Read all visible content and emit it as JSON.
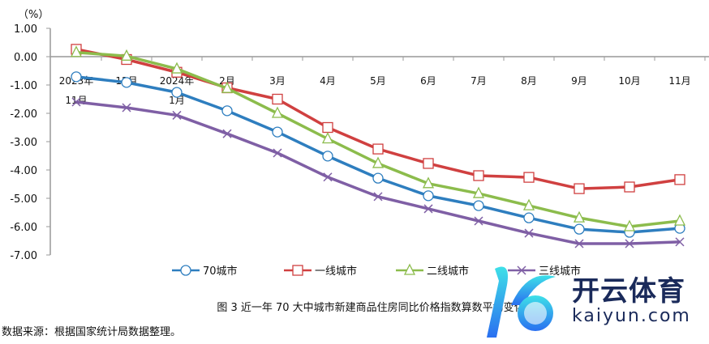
{
  "chart_data": {
    "type": "line",
    "title": "",
    "ylabel": "（%）",
    "ylim": [
      -7,
      1
    ],
    "yticks": [
      "1.00",
      "0.00",
      "-1.00",
      "-2.00",
      "-3.00",
      "-4.00",
      "-5.00",
      "-6.00",
      "-7.00"
    ],
    "categories": [
      [
        "2023年",
        "11月"
      ],
      [
        "12月"
      ],
      [
        "2024年",
        "1月"
      ],
      [
        "2月"
      ],
      [
        "3月"
      ],
      [
        "4月"
      ],
      [
        "5月"
      ],
      [
        "6月"
      ],
      [
        "7月"
      ],
      [
        "8月"
      ],
      [
        "9月"
      ],
      [
        "10月"
      ],
      [
        "11月"
      ]
    ],
    "legend_position": "bottom",
    "series": [
      {
        "name": "70城市",
        "color": "#2e7ebf",
        "marker": "circle",
        "values": [
          -0.71,
          -0.91,
          -1.26,
          -1.91,
          -2.66,
          -3.51,
          -4.29,
          -4.91,
          -5.26,
          -5.69,
          -6.09,
          -6.2,
          -6.06
        ]
      },
      {
        "name": "一线城市",
        "color": "#d04040",
        "marker": "square",
        "values": [
          0.26,
          -0.1,
          -0.55,
          -1.1,
          -1.5,
          -2.5,
          -3.26,
          -3.77,
          -4.2,
          -4.26,
          -4.66,
          -4.6,
          -4.34
        ]
      },
      {
        "name": "二线城市",
        "color": "#8cbc4c",
        "marker": "triangle",
        "values": [
          0.15,
          0.02,
          -0.43,
          -1.12,
          -2.0,
          -2.9,
          -3.77,
          -4.48,
          -4.83,
          -5.26,
          -5.69,
          -6.0,
          -5.8
        ]
      },
      {
        "name": "三线城市",
        "color": "#7f5fa5",
        "marker": "x",
        "values": [
          -1.6,
          -1.8,
          -2.07,
          -2.72,
          -3.4,
          -4.25,
          -4.94,
          -5.37,
          -5.8,
          -6.23,
          -6.6,
          -6.6,
          -6.54
        ]
      }
    ]
  },
  "caption": "图 3  近一年 70 大中城市新建商品住房同比价格指数算数平均变化",
  "source": "数据来源：根据国家统计局数据整理。",
  "watermark": {
    "name": "开云体育",
    "url": "kaiyun.com"
  }
}
